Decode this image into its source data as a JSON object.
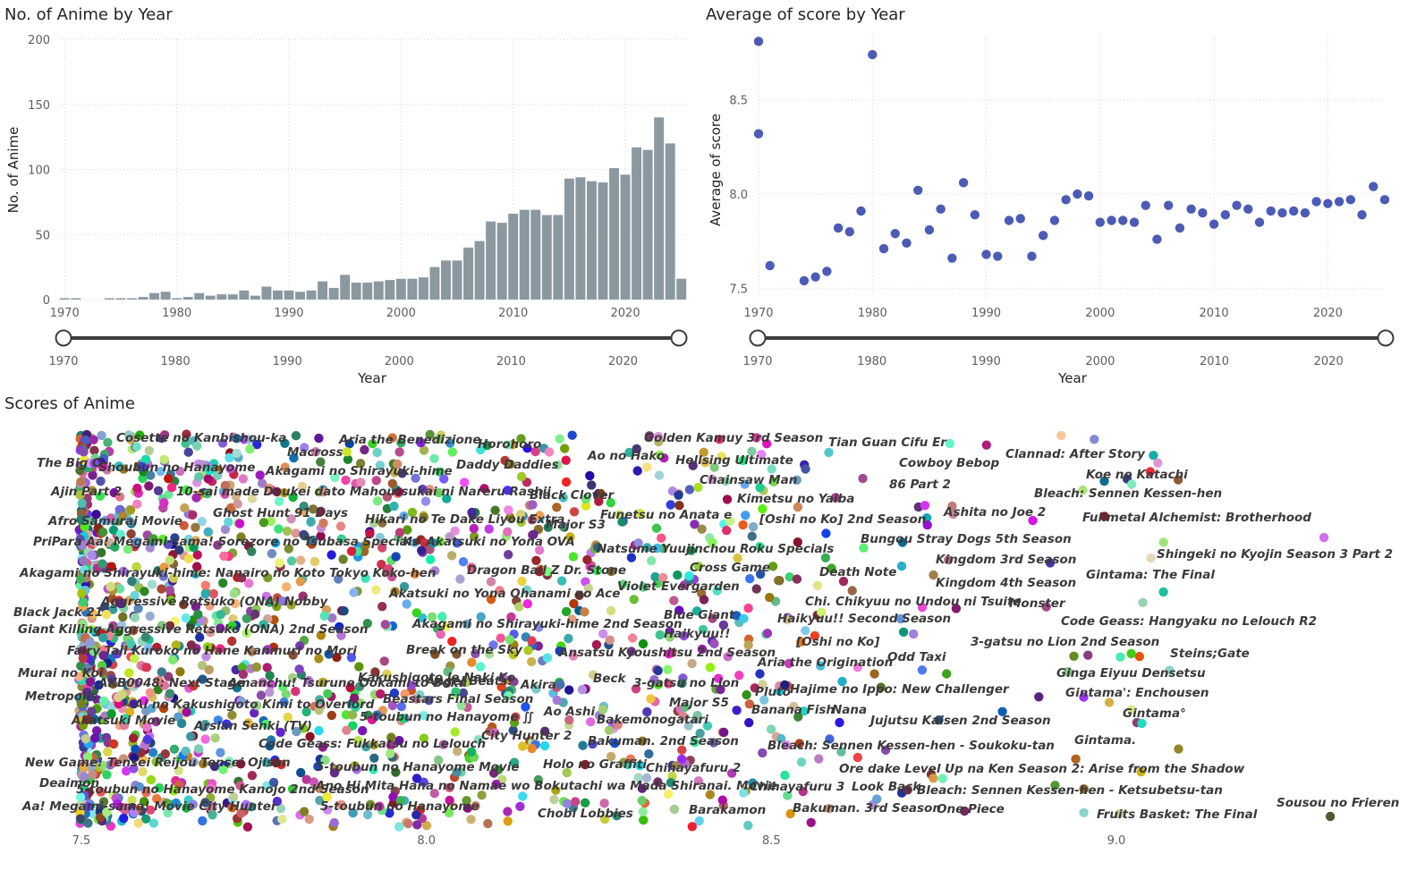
{
  "panels": {
    "count_title": "No. of Anime by Year",
    "score_title": "Average of score by Year",
    "scatter_title": "Scores of Anime"
  },
  "slider": {
    "start_label": "1970",
    "end_label": "2025"
  },
  "colors": {
    "bar": "#8b989f",
    "dot": "#4c5bb5",
    "slider": "#3d3d3d"
  },
  "chart_data": [
    {
      "type": "bar",
      "title": "No. of Anime by Year",
      "xlabel": "Year",
      "ylabel": "No. of Anime",
      "ylim": [
        0,
        200
      ],
      "yticks": [
        0,
        50,
        100,
        150,
        200
      ],
      "xticks": [
        1970,
        1980,
        1990,
        2000,
        2010,
        2020
      ],
      "grid": true,
      "categories": [
        1970,
        1971,
        1972,
        1973,
        1974,
        1975,
        1976,
        1977,
        1978,
        1979,
        1980,
        1981,
        1982,
        1983,
        1984,
        1985,
        1986,
        1987,
        1988,
        1989,
        1990,
        1991,
        1992,
        1993,
        1994,
        1995,
        1996,
        1997,
        1998,
        1999,
        2000,
        2001,
        2002,
        2003,
        2004,
        2005,
        2006,
        2007,
        2008,
        2009,
        2010,
        2011,
        2012,
        2013,
        2014,
        2015,
        2016,
        2017,
        2018,
        2019,
        2020,
        2021,
        2022,
        2023,
        2024,
        2025
      ],
      "values": [
        1,
        1,
        0,
        0,
        1,
        1,
        1,
        2,
        5,
        6,
        1,
        2,
        5,
        3,
        4,
        4,
        7,
        3,
        10,
        7,
        7,
        6,
        7,
        14,
        9,
        19,
        13,
        13,
        14,
        15,
        16,
        16,
        17,
        25,
        30,
        30,
        40,
        45,
        60,
        59,
        66,
        69,
        69,
        65,
        65,
        93,
        94,
        91,
        90,
        101,
        96,
        117,
        115,
        140,
        120,
        16
      ]
    },
    {
      "type": "scatter",
      "title": "Average of score by Year",
      "xlabel": "Year",
      "ylabel": "Average of score",
      "xlim": [
        1970,
        2025
      ],
      "ylim": [
        7.44,
        8.84
      ],
      "yticks": [
        7.5,
        8.0,
        8.5
      ],
      "xticks": [
        1970,
        1980,
        1990,
        2000,
        2010,
        2020
      ],
      "grid": true,
      "x": [
        1970,
        1970,
        1971,
        1974,
        1975,
        1976,
        1977,
        1978,
        1979,
        1980,
        1981,
        1982,
        1983,
        1984,
        1985,
        1986,
        1987,
        1988,
        1989,
        1990,
        1991,
        1992,
        1993,
        1994,
        1995,
        1996,
        1997,
        1998,
        1999,
        2000,
        2001,
        2002,
        2003,
        2004,
        2005,
        2006,
        2007,
        2008,
        2009,
        2010,
        2011,
        2012,
        2013,
        2014,
        2015,
        2016,
        2017,
        2018,
        2019,
        2020,
        2021,
        2022,
        2023,
        2024,
        2025
      ],
      "y": [
        8.81,
        8.32,
        7.62,
        7.54,
        7.56,
        7.59,
        7.82,
        7.8,
        7.91,
        8.74,
        7.71,
        7.79,
        7.74,
        8.02,
        7.81,
        7.92,
        7.66,
        8.06,
        7.89,
        7.68,
        7.67,
        7.86,
        7.87,
        7.67,
        7.78,
        7.86,
        7.97,
        8.0,
        7.99,
        7.85,
        7.86,
        7.86,
        7.85,
        7.94,
        7.76,
        7.94,
        7.82,
        7.92,
        7.9,
        7.84,
        7.89,
        7.94,
        7.92,
        7.85,
        7.91,
        7.9,
        7.91,
        7.9,
        7.96,
        7.95,
        7.96,
        7.97,
        7.89,
        8.04,
        7.97
      ]
    },
    {
      "type": "scatter",
      "title": "Scores of Anime",
      "xlabel": "Average of score",
      "xlim": [
        7.48,
        9.52
      ],
      "xticks": [
        7.5,
        8.0,
        8.5,
        9.0
      ],
      "labeled_points": [
        {
          "name": "Golden Kamuy 3rd Season",
          "score": 8.3
        },
        {
          "name": "Tian Guan Cifu Er",
          "score": 8.59
        },
        {
          "name": "Clannad: After Story",
          "score": 8.93
        },
        {
          "name": "Koe no Katachi",
          "score": 8.94
        },
        {
          "name": "Cowboy Bebop",
          "score": 8.75
        },
        {
          "name": "Hellsing Ultimate",
          "score": 8.35
        },
        {
          "name": "Ao no Hako",
          "score": 8.24
        },
        {
          "name": "Chainsaw Man",
          "score": 8.46
        },
        {
          "name": "86 Part 2",
          "score": 8.7
        },
        {
          "name": "Bleach: Sennen Kessen-hen",
          "score": 9.0
        },
        {
          "name": "Black Clover",
          "score": 8.15
        },
        {
          "name": "Kimetsu no Yaiba",
          "score": 8.48
        },
        {
          "name": "Ashita no Joe 2",
          "score": 8.74
        },
        {
          "name": "Fullmetal Alchemist: Brotherhood",
          "score": 9.09
        },
        {
          "name": "Funetsu no Anata e",
          "score": 8.33
        },
        {
          "name": "[Oshi no Ko] 2nd Season",
          "score": 8.57
        },
        {
          "name": "Bungou Stray Dogs 5th Season",
          "score": 8.81
        },
        {
          "name": "Natsume Yuujinchou Roku Specials",
          "score": 8.4
        },
        {
          "name": "Shingeki no Kyojin Season 3 Part 2",
          "score": 9.05
        },
        {
          "name": "Kingdom 3rd Season",
          "score": 8.78
        },
        {
          "name": "Gintama: The Final",
          "score": 9.04
        },
        {
          "name": "Death Note",
          "score": 8.62
        },
        {
          "name": "Cross Game",
          "score": 8.42
        },
        {
          "name": "Dragon Ball Z Dr. Stone",
          "score": 8.12
        },
        {
          "name": "Kingdom 4th Season",
          "score": 8.77
        },
        {
          "name": "Violet Evergarden",
          "score": 8.35
        },
        {
          "name": "Monster",
          "score": 8.88
        },
        {
          "name": "Chi. Chikyuu no Undou ni Tsuite",
          "score": 8.65
        },
        {
          "name": "Code Geass: Hangyaku no Lelouch R2",
          "score": 8.91
        },
        {
          "name": "Blue Giant",
          "score": 8.4
        },
        {
          "name": "Haikyuu!! Second Season",
          "score": 8.62
        },
        {
          "name": "Akagami no Shirayuki-hime 2nd Season",
          "score": 8.2
        },
        {
          "name": "Haikyuu!!",
          "score": 8.43
        },
        {
          "name": "3-gatsu no Lion 2nd Season",
          "score": 8.89
        },
        {
          "name": "[Oshi no Ko]",
          "score": 8.6
        },
        {
          "name": "Steins;Gate",
          "score": 9.07
        },
        {
          "name": "Ansatsu Kyoushitsu 2nd Season",
          "score": 8.3
        },
        {
          "name": "Aria the Origination",
          "score": 8.56
        },
        {
          "name": "Odd Taxi",
          "score": 8.76
        },
        {
          "name": "Ginga Eiyuu Densetsu",
          "score": 9.02
        },
        {
          "name": "3-gatsu no Lion",
          "score": 8.37
        },
        {
          "name": "Hajime no Ippo: New Challenger",
          "score": 8.6
        },
        {
          "name": "Gintama': Enchousen",
          "score": 9.04
        },
        {
          "name": "Pluto",
          "score": 8.49
        },
        {
          "name": "Major S5",
          "score": 8.38
        },
        {
          "name": "Banana Fish",
          "score": 8.45
        },
        {
          "name": "Nana",
          "score": 8.55
        },
        {
          "name": "Gintama°",
          "score": 9.06
        },
        {
          "name": "Jujutsu Kaisen 2nd Season",
          "score": 8.66
        },
        {
          "name": "Bakemonogatari",
          "score": 8.28
        },
        {
          "name": "Gintama.",
          "score": 8.98
        },
        {
          "name": "Bleach: Sennen Kessen-hen - Soukoku-tan",
          "score": 8.55
        },
        {
          "name": "Bakuman. 2nd Season",
          "score": 8.3
        },
        {
          "name": "Ore dake Level Up na Ken Season 2: Arise from the Shadow",
          "score": 8.63
        },
        {
          "name": "Holo no Graffiti",
          "score": 8.21
        },
        {
          "name": "Chihayafuru 2",
          "score": 8.36
        },
        {
          "name": "Chihayafuru 3",
          "score": 8.52
        },
        {
          "name": "Look Back",
          "score": 8.58
        },
        {
          "name": "Bleach: Sennen Kessen-hen - Ketsubetsu-tan",
          "score": 8.74
        },
        {
          "name": "Sousou no Frieren",
          "score": 9.3
        },
        {
          "name": "Barakamon",
          "score": 8.4
        },
        {
          "name": "Bakuman. 3rd Season",
          "score": 8.52
        },
        {
          "name": "One Piece",
          "score": 8.73
        },
        {
          "name": "Fruits Basket: The Final",
          "score": 8.97
        },
        {
          "name": "Chobi Lobbies",
          "score": 8.2
        }
      ]
    }
  ],
  "scatter_text": [
    {
      "t": "Golden Kamuy 3rd Season",
      "x": 720,
      "y": 494
    },
    {
      "t": "Tian Guan Cifu Er",
      "x": 926,
      "y": 499
    },
    {
      "t": "Clannad: After Story",
      "x": 1124,
      "y": 512
    },
    {
      "t": "Ao no Hako",
      "x": 657,
      "y": 514
    },
    {
      "t": "Hellsing Ultimate",
      "x": 755,
      "y": 519
    },
    {
      "t": "Cowboy Bebop",
      "x": 1005,
      "y": 522
    },
    {
      "t": "Koe no Katachi",
      "x": 1214,
      "y": 535
    },
    {
      "t": "Chainsaw Man",
      "x": 782,
      "y": 541
    },
    {
      "t": "86 Part 2",
      "x": 994,
      "y": 546
    },
    {
      "t": "Bleach: Sennen Kessen-hen",
      "x": 1156,
      "y": 556
    },
    {
      "t": "Black Clover",
      "x": 592,
      "y": 558
    },
    {
      "t": "Kimetsu no Yaiba",
      "x": 824,
      "y": 562
    },
    {
      "t": "Ashita no Joe 2",
      "x": 1055,
      "y": 577
    },
    {
      "t": "Funetsu no Anata e",
      "x": 671,
      "y": 580
    },
    {
      "t": "Fullmetal Alchemist: Brotherhood",
      "x": 1210,
      "y": 583
    },
    {
      "t": "[Oshi no Ko] 2nd Season",
      "x": 849,
      "y": 585
    },
    {
      "t": "Major S3",
      "x": 610,
      "y": 591
    },
    {
      "t": "Bungou Stray Dogs 5th Season",
      "x": 962,
      "y": 607
    },
    {
      "t": "Natsume Yuujinchou Roku Specials",
      "x": 667,
      "y": 618
    },
    {
      "t": "Shingeki no Kyojin Season 3 Part 2",
      "x": 1293,
      "y": 624
    },
    {
      "t": "Kingdom 3rd Season",
      "x": 1046,
      "y": 630
    },
    {
      "t": "Cross Game",
      "x": 771,
      "y": 639
    },
    {
      "t": "Dragon Ball Z Dr. Stone",
      "x": 522,
      "y": 642
    },
    {
      "t": "Death Note",
      "x": 916,
      "y": 644
    },
    {
      "t": "Gintama: The Final",
      "x": 1214,
      "y": 647
    },
    {
      "t": "Kingdom 4th Season",
      "x": 1046,
      "y": 656
    },
    {
      "t": "Violet Evergarden",
      "x": 690,
      "y": 660
    },
    {
      "t": "Chi. Chikyuu no Undou ni Tsuite",
      "x": 900,
      "y": 677
    },
    {
      "t": "Monster",
      "x": 1128,
      "y": 679
    },
    {
      "t": "Blue Giant",
      "x": 742,
      "y": 692
    },
    {
      "t": "Haikyuu!! Second Season",
      "x": 869,
      "y": 696
    },
    {
      "t": "Code Geass: Hangyaku no Lelouch R2",
      "x": 1186,
      "y": 699
    },
    {
      "t": "Akagami no Shirayuki-hime 2nd Season",
      "x": 461,
      "y": 702
    },
    {
      "t": "Haikyuu!!",
      "x": 742,
      "y": 713
    },
    {
      "t": "3-gatsu no Lion 2nd Season",
      "x": 1085,
      "y": 722
    },
    {
      "t": "[Oshi no Ko]",
      "x": 890,
      "y": 722
    },
    {
      "t": "Steins;Gate",
      "x": 1308,
      "y": 735
    },
    {
      "t": "Ansatsu Kyoushitsu 2nd Season",
      "x": 625,
      "y": 734
    },
    {
      "t": "Odd Taxi",
      "x": 992,
      "y": 739
    },
    {
      "t": "Aria the Origination",
      "x": 847,
      "y": 745
    },
    {
      "t": "Ginga Eiyuu Densetsu",
      "x": 1181,
      "y": 757
    },
    {
      "t": "Beck",
      "x": 663,
      "y": 763
    },
    {
      "t": "3-gatsu no Lion",
      "x": 708,
      "y": 768
    },
    {
      "t": "Hajime no Ippo: New Challenger",
      "x": 883,
      "y": 775
    },
    {
      "t": "Pluto",
      "x": 844,
      "y": 778
    },
    {
      "t": "Gintama': Enchousen",
      "x": 1191,
      "y": 779
    },
    {
      "t": "Major S5",
      "x": 748,
      "y": 790
    },
    {
      "t": "Banana Fish",
      "x": 840,
      "y": 798
    },
    {
      "t": "Nana",
      "x": 930,
      "y": 798
    },
    {
      "t": "Gintama°",
      "x": 1255,
      "y": 802
    },
    {
      "t": "Bakemonogatari",
      "x": 667,
      "y": 809
    },
    {
      "t": "Jujutsu Kaisen 2nd Season",
      "x": 973,
      "y": 810
    },
    {
      "t": "Gintama.",
      "x": 1201,
      "y": 832
    },
    {
      "t": "Bakuman. 2nd Season",
      "x": 657,
      "y": 833
    },
    {
      "t": "Bleach: Sennen Kessen-hen - Soukoku-tan",
      "x": 858,
      "y": 838
    },
    {
      "t": "Holo no Graffiti",
      "x": 607,
      "y": 859
    },
    {
      "t": "Chihayafuru 2",
      "x": 722,
      "y": 863
    },
    {
      "t": "Ore dake Level Up na Ken Season 2: Arise from the Shadow",
      "x": 938,
      "y": 864
    },
    {
      "t": "Chihayafuru 3",
      "x": 838,
      "y": 884
    },
    {
      "t": "Look Back",
      "x": 952,
      "y": 884
    },
    {
      "t": "Bleach: Sennen Kessen-hen - Ketsubetsu-tan",
      "x": 1025,
      "y": 888
    },
    {
      "t": "Sousou no Frieren",
      "x": 1427,
      "y": 902
    },
    {
      "t": "Barakamon",
      "x": 770,
      "y": 910
    },
    {
      "t": "Bakuman. 3rd Season",
      "x": 886,
      "y": 908
    },
    {
      "t": "One Piece",
      "x": 1047,
      "y": 909
    },
    {
      "t": "Fruits Basket: The Final",
      "x": 1226,
      "y": 915
    },
    {
      "t": "Chobi Lobbies",
      "x": 601,
      "y": 914
    },
    {
      "t": "Aria the Benedizione",
      "x": 379,
      "y": 496
    },
    {
      "t": "Horohoro",
      "x": 534,
      "y": 501
    },
    {
      "t": "Macross",
      "x": 321,
      "y": 510
    },
    {
      "t": "Daddy Daddies",
      "x": 510,
      "y": 524
    },
    {
      "t": "Akagami no Shirayuki-hime",
      "x": 297,
      "y": 531
    },
    {
      "t": "The Big O",
      "x": 41,
      "y": 522
    },
    {
      "t": "Shoubun no Hanayome",
      "x": 110,
      "y": 527
    },
    {
      "t": "Ajin Part 2",
      "x": 57,
      "y": 554
    },
    {
      "t": "10-sai made Doukei dato Mahoutsukai ni Nareru Rashii",
      "x": 197,
      "y": 554
    },
    {
      "t": "Cosette no Kanbishou-ka",
      "x": 130,
      "y": 494
    },
    {
      "t": "Ghost Hunt 91 Days",
      "x": 238,
      "y": 578
    },
    {
      "t": "Afro Samurai Movie",
      "x": 54,
      "y": 587
    },
    {
      "t": "Hikari no Te Dake Liyou Extra",
      "x": 408,
      "y": 585
    },
    {
      "t": "PriPara Aa! Megami-sama! Sorezore no Tsubasa Specials",
      "x": 37,
      "y": 610
    },
    {
      "t": "K∞ Akatsuki no Yona OVA",
      "x": 450,
      "y": 610
    },
    {
      "t": "Akagami no Shirayuki-hime: Nanairo no Koto Tokyo Koko-hen",
      "x": 22,
      "y": 645
    },
    {
      "t": "Akatsuki no Yona Ohanami no Ace",
      "x": 435,
      "y": 668
    },
    {
      "t": "Aggressive Retsuko (ONA) Nobby",
      "x": 113,
      "y": 677
    },
    {
      "t": "Black Jack 21",
      "x": 15,
      "y": 689
    },
    {
      "t": "Giant Killing Aggressive Retsuko (ONA) 2nd Season",
      "x": 20,
      "y": 708
    },
    {
      "t": "Fairy Tail Kuroko no Hane Kanmuri no Mori",
      "x": 75,
      "y": 732
    },
    {
      "t": "Break on the Sky",
      "x": 454,
      "y": 731
    },
    {
      "t": "Murai no Koi",
      "x": 20,
      "y": 757
    },
    {
      "t": "AKB0048: Next Stage",
      "x": 110,
      "y": 768
    },
    {
      "t": "Amanchu! Tsurune Ookami to Boku",
      "x": 255,
      "y": 768
    },
    {
      "t": "Kakushigoto le Naki Ko",
      "x": 400,
      "y": 762
    },
    {
      "t": "Angel Beats!",
      "x": 476,
      "y": 766
    },
    {
      "t": "Akira",
      "x": 582,
      "y": 770
    },
    {
      "t": "Metropolis",
      "x": 28,
      "y": 783
    },
    {
      "t": "Ai no Kakushigoto Kimi to Overlord",
      "x": 150,
      "y": 792
    },
    {
      "t": "Beastars Final Season",
      "x": 428,
      "y": 786
    },
    {
      "t": "Ao Ashi",
      "x": 608,
      "y": 800
    },
    {
      "t": "Akatsuki Movie",
      "x": 80,
      "y": 810
    },
    {
      "t": "Arslan Senki (TV)",
      "x": 217,
      "y": 816
    },
    {
      "t": "5-toubun no Hanayome ∬",
      "x": 402,
      "y": 806
    },
    {
      "t": "City Hunter 2",
      "x": 538,
      "y": 827
    },
    {
      "t": "Code Geass: Fukkatsu no Lelouch",
      "x": 289,
      "y": 836
    },
    {
      "t": "New Game! Tensei Reijou Tensei Ojisan",
      "x": 28,
      "y": 857
    },
    {
      "t": "5-toubun no Hanayome Movie",
      "x": 353,
      "y": 862
    },
    {
      "t": "Deaimon",
      "x": 44,
      "y": 880
    },
    {
      "t": "5-toubun no Hanayome Kanojo 2nd Season",
      "x": 85,
      "y": 887
    },
    {
      "t": "Ano Hi Mita Hana no Namae wo Bokutachi wa Mada Shiranai. Movie",
      "x": 353,
      "y": 883
    },
    {
      "t": "Aa! Megami-sama! Movie City Hunter",
      "x": 25,
      "y": 906
    },
    {
      "t": "5-toubun no Hanayome",
      "x": 358,
      "y": 906
    }
  ]
}
